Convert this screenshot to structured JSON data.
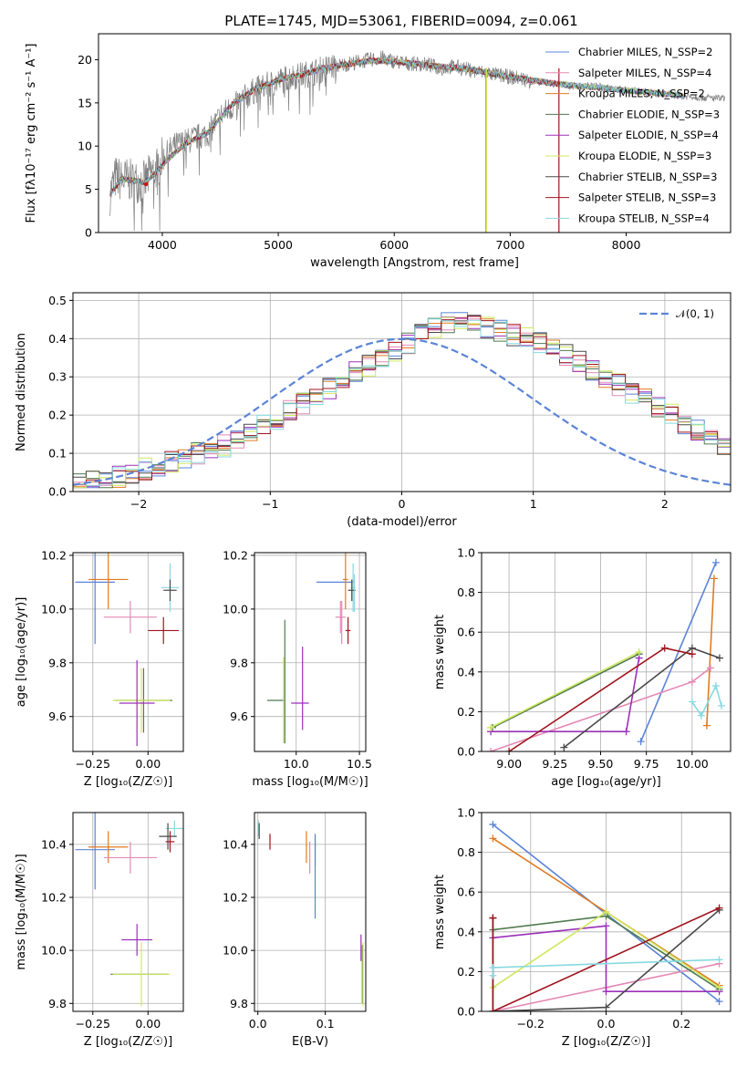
{
  "figure_title": "PLATE=1745, MJD=53061, FIBERID=0094, z=0.061",
  "models": [
    {
      "name": "Chabrier MILES, N_SSP=2",
      "color": "#5b84d8"
    },
    {
      "name": "Salpeter MILES, N_SSP=4",
      "color": "#e589b6"
    },
    {
      "name": "Kroupa MILES, N_SSP=2",
      "color": "#e07b22"
    },
    {
      "name": "Chabrier ELODIE, N_SSP=3",
      "color": "#4f7a4f"
    },
    {
      "name": "Salpeter ELODIE, N_SSP=4",
      "color": "#9b30b8"
    },
    {
      "name": "Kroupa ELODIE, N_SSP=3",
      "color": "#cfe85f"
    },
    {
      "name": "Chabrier STELIB, N_SSP=3",
      "color": "#4a4a4a"
    },
    {
      "name": "Salpeter STELIB, N_SSP=3",
      "color": "#a0141c"
    },
    {
      "name": "Kroupa STELIB, N_SSP=4",
      "color": "#86d9e0"
    }
  ],
  "chart_data": [
    {
      "id": "spectrum",
      "type": "line",
      "xlabel": "wavelength [Angstrom, rest frame]",
      "ylabel": "Flux [fλ10⁻¹⁷ erg cm⁻² s⁻¹ A⁻¹]",
      "xlim": [
        3450,
        8900
      ],
      "ylim": [
        0,
        23
      ],
      "xticks": [
        4000,
        5000,
        6000,
        7000,
        8000
      ],
      "yticks": [
        0,
        5,
        10,
        15,
        20
      ],
      "legend": "right",
      "data_color": "#808080",
      "data_x": [
        3550,
        3600,
        3650,
        3700,
        3750,
        3800,
        3850,
        3900,
        3950,
        4000,
        4100,
        4200,
        4300,
        4400,
        4500,
        4600,
        4700,
        4800,
        4900,
        5000,
        5100,
        5200,
        5300,
        5400,
        5500,
        5600,
        5700,
        5800,
        5900,
        6000,
        6100,
        6200,
        6300,
        6400,
        6500,
        6600,
        6700,
        6800,
        6900,
        7000,
        7100,
        7200,
        7300,
        7400,
        7500,
        7600,
        7700,
        7800,
        7900,
        8000,
        8100,
        8200,
        8300,
        8400,
        8500,
        8600,
        8700,
        8800
      ],
      "data_y": [
        4.5,
        6.5,
        6.0,
        6.2,
        5.8,
        6.0,
        5.8,
        6.8,
        7.5,
        8.5,
        10.0,
        10.5,
        11.0,
        11.5,
        13.5,
        14.5,
        15.5,
        16.5,
        17.0,
        17.5,
        18.0,
        18.2,
        18.5,
        19.0,
        19.3,
        19.5,
        19.8,
        20.0,
        20.2,
        19.8,
        19.6,
        19.5,
        19.4,
        19.0,
        19.2,
        19.0,
        18.6,
        18.5,
        18.2,
        18.0,
        17.8,
        17.5,
        17.3,
        17.2,
        17.0,
        16.9,
        17.0,
        16.8,
        16.6,
        16.5,
        16.4,
        16.2,
        16.0,
        16.0,
        15.8,
        15.7,
        15.6,
        15.5
      ],
      "model_x": [
        3550,
        3650,
        3750,
        3850,
        3950,
        4050,
        4200,
        4400,
        4600,
        4800,
        5000,
        5200,
        5400,
        5600,
        5800,
        6000,
        6200,
        6400,
        6600,
        6800,
        7000,
        7200,
        7400
      ],
      "model_y": [
        4.5,
        6.2,
        6.0,
        5.8,
        7.0,
        8.5,
        10.3,
        11.6,
        14.8,
        16.6,
        17.6,
        18.3,
        19.0,
        19.5,
        19.9,
        19.8,
        19.5,
        19.2,
        19.0,
        18.5,
        18.0,
        17.6,
        17.2
      ],
      "model_end_x": [
        8500,
        8500,
        8500,
        8500,
        8500,
        8500,
        8500,
        7420,
        8500
      ],
      "drop_lines": [
        {
          "x": 6790,
          "model": 2
        },
        {
          "x": 6795,
          "model": 5
        },
        {
          "x": 7420,
          "model": 7
        }
      ]
    },
    {
      "id": "residuals",
      "type": "area",
      "xlabel": "(data-model)/error",
      "ylabel": "Normed distribution",
      "xlim": [
        -2.5,
        2.5
      ],
      "ylim": [
        0,
        0.52
      ],
      "xticks": [
        -2,
        -1,
        0,
        1,
        2
      ],
      "yticks": [
        0.0,
        0.1,
        0.2,
        0.3,
        0.4,
        0.5
      ],
      "legend": "top-right",
      "legend_label": "𝒩(0, 1)",
      "gauss_color": "#5b84d8",
      "bin_width": 0.1,
      "bin_start": -2.5,
      "base_hist": [
        0.02,
        0.025,
        0.03,
        0.04,
        0.05,
        0.06,
        0.07,
        0.08,
        0.09,
        0.1,
        0.11,
        0.12,
        0.14,
        0.16,
        0.17,
        0.19,
        0.21,
        0.23,
        0.25,
        0.27,
        0.29,
        0.31,
        0.33,
        0.35,
        0.37,
        0.39,
        0.41,
        0.43,
        0.44,
        0.45,
        0.44,
        0.43,
        0.42,
        0.41,
        0.4,
        0.39,
        0.38,
        0.36,
        0.34,
        0.32,
        0.3,
        0.28,
        0.26,
        0.24,
        0.22,
        0.2,
        0.18,
        0.16,
        0.14,
        0.12
      ]
    },
    {
      "id": "age_vs_Z",
      "type": "scatter",
      "xlabel": "Z [log₁₀(Z/Z☉)]",
      "ylabel": "age  [log₁₀(age/yr)]",
      "xlim": [
        -0.34,
        0.16
      ],
      "ylim": [
        9.47,
        10.21
      ],
      "xticks": [
        -0.25,
        0.0
      ],
      "yticks": [
        9.6,
        9.8,
        10.0,
        10.2
      ],
      "points": [
        {
          "model": 0,
          "x": -0.24,
          "y": 10.1,
          "xerr": 0.09,
          "yerr": 0.23
        },
        {
          "model": 2,
          "x": -0.18,
          "y": 10.11,
          "xerr": 0.09,
          "yerr": 0.11
        },
        {
          "model": 1,
          "x": -0.08,
          "y": 9.97,
          "xerr": 0.12,
          "yerr": 0.06
        },
        {
          "model": 8,
          "x": 0.1,
          "y": 10.08,
          "xerr": 0.04,
          "yerr": 0.09
        },
        {
          "model": 6,
          "x": 0.1,
          "y": 10.07,
          "xerr": 0.03,
          "yerr": 0.04
        },
        {
          "model": 7,
          "x": 0.07,
          "y": 9.92,
          "xerr": 0.07,
          "yerr": 0.05
        },
        {
          "model": 3,
          "x": -0.02,
          "y": 9.66,
          "xerr": 0.13,
          "yerr": 0.12
        },
        {
          "model": 5,
          "x": -0.03,
          "y": 9.66,
          "xerr": 0.13,
          "yerr": 0.12
        },
        {
          "model": 4,
          "x": -0.05,
          "y": 9.65,
          "xerr": 0.08,
          "yerr": 0.16
        }
      ]
    },
    {
      "id": "age_vs_mass",
      "type": "scatter",
      "xlabel": "mass [log₁₀(M/M☉)]",
      "ylabel": "",
      "xlim": [
        9.67,
        10.55
      ],
      "ylim": [
        9.47,
        10.21
      ],
      "xticks": [
        10.0,
        10.5
      ],
      "yticks": [
        9.6,
        9.8,
        10.0,
        10.2
      ],
      "points": [
        {
          "model": 0,
          "x": 10.31,
          "y": 10.1,
          "xerr": 0.15,
          "yerr": 0.0
        },
        {
          "model": 2,
          "x": 10.39,
          "y": 10.11,
          "xerr": 0.02,
          "yerr": 0.11
        },
        {
          "model": 1,
          "x": 10.35,
          "y": 9.97,
          "xerr": 0.04,
          "yerr": 0.06
        },
        {
          "model": 8,
          "x": 10.45,
          "y": 10.08,
          "xerr": 0.02,
          "yerr": 0.09
        },
        {
          "model": 6,
          "x": 10.44,
          "y": 10.07,
          "xerr": 0.03,
          "yerr": 0.04
        },
        {
          "model": 7,
          "x": 10.41,
          "y": 9.92,
          "xerr": 0.02,
          "yerr": 0.05
        },
        {
          "model": 3,
          "x": 9.84,
          "y": 9.66,
          "xerr": 0.07,
          "yerr": 0.0
        },
        {
          "model": 5,
          "x": 9.9,
          "y": 9.66,
          "xerr": 0.0,
          "yerr": 0.16
        },
        {
          "model": 4,
          "x": 10.03,
          "y": 9.65,
          "xerr": 0.07,
          "yerr": 0.0
        }
      ],
      "vlines": [
        {
          "model": 3,
          "x": 9.91,
          "y0": 9.5,
          "y1": 9.96
        },
        {
          "model": 4,
          "x": 10.05,
          "y0": 9.55,
          "y1": 9.86
        },
        {
          "model": 1,
          "x": 10.36,
          "y0": 9.87,
          "y1": 10.03
        },
        {
          "model": 8,
          "x": 10.46,
          "y0": 9.99,
          "y1": 10.13
        }
      ]
    },
    {
      "id": "weight_vs_age",
      "type": "line",
      "xlabel": "age  [log₁₀(age/yr)]",
      "ylabel": "mass weight",
      "xlim": [
        8.85,
        10.21
      ],
      "ylim": [
        0,
        1
      ],
      "xticks": [
        9.0,
        9.25,
        9.5,
        9.75,
        10.0
      ],
      "yticks": [
        0.0,
        0.2,
        0.4,
        0.6,
        0.8,
        1.0
      ],
      "series": [
        {
          "model": 0,
          "x": [
            9.72,
            10.13
          ],
          "y": [
            0.05,
            0.95
          ]
        },
        {
          "model": 2,
          "x": [
            10.08,
            10.12
          ],
          "y": [
            0.13,
            0.87
          ]
        },
        {
          "model": 1,
          "x": [
            8.9,
            10.0,
            10.1
          ],
          "y": [
            0.0,
            0.35,
            0.42
          ]
        },
        {
          "model": 3,
          "x": [
            8.91,
            9.71
          ],
          "y": [
            0.12,
            0.49
          ]
        },
        {
          "model": 4,
          "x": [
            8.9,
            9.64,
            9.71
          ],
          "y": [
            0.1,
            0.1,
            0.47
          ]
        },
        {
          "model": 5,
          "x": [
            8.9,
            9.71
          ],
          "y": [
            0.12,
            0.5
          ]
        },
        {
          "model": 6,
          "x": [
            9.3,
            10.0,
            10.15
          ],
          "y": [
            0.02,
            0.52,
            0.47
          ]
        },
        {
          "model": 7,
          "x": [
            9.0,
            9.85,
            10.0
          ],
          "y": [
            0.0,
            0.52,
            0.49
          ]
        },
        {
          "model": 8,
          "x": [
            10.0,
            10.05,
            10.13,
            10.16
          ],
          "y": [
            0.25,
            0.18,
            0.33,
            0.23
          ]
        }
      ]
    },
    {
      "id": "mass_vs_Z",
      "type": "scatter",
      "xlabel": "Z [log₁₀(Z/Z☉)]",
      "ylabel": "mass [log₁₀(M/M☉)]",
      "xlim": [
        -0.34,
        0.16
      ],
      "ylim": [
        9.77,
        10.52
      ],
      "xticks": [
        -0.25,
        0.0
      ],
      "yticks": [
        9.8,
        10.0,
        10.2,
        10.4
      ],
      "points": [
        {
          "model": 0,
          "x": -0.24,
          "y": 10.38,
          "xerr": 0.09,
          "yerr": 0.15
        },
        {
          "model": 2,
          "x": -0.18,
          "y": 10.39,
          "xerr": 0.09,
          "yerr": 0.06
        },
        {
          "model": 1,
          "x": -0.08,
          "y": 10.35,
          "xerr": 0.12,
          "yerr": 0.06
        },
        {
          "model": 8,
          "x": 0.12,
          "y": 10.46,
          "xerr": 0.04,
          "yerr": 0.03
        },
        {
          "model": 6,
          "x": 0.09,
          "y": 10.43,
          "xerr": 0.04,
          "yerr": 0.05
        },
        {
          "model": 7,
          "x": 0.1,
          "y": 10.41,
          "xerr": 0.02,
          "yerr": 0.04
        },
        {
          "model": 4,
          "x": -0.05,
          "y": 10.04,
          "xerr": 0.07,
          "yerr": 0.06
        },
        {
          "model": 3,
          "x": -0.04,
          "y": 9.91,
          "xerr": 0.13,
          "yerr": 0.0
        },
        {
          "model": 5,
          "x": -0.03,
          "y": 9.91,
          "xerr": 0.13,
          "yerr": 0.12
        }
      ]
    },
    {
      "id": "mass_vs_ebv",
      "type": "scatter",
      "xlabel": "E(B-V)",
      "ylabel": "",
      "xlim": [
        -0.005,
        0.16
      ],
      "ylim": [
        9.77,
        10.52
      ],
      "xticks": [
        0.0,
        0.1
      ],
      "yticks": [
        9.8,
        10.0,
        10.2,
        10.4
      ],
      "points": [
        {
          "model": 0,
          "x": 0.085,
          "y": 10.38,
          "xerr": 0,
          "yerr": 0.06
        },
        {
          "model": 2,
          "x": 0.072,
          "y": 10.39,
          "xerr": 0,
          "yerr": 0.06
        },
        {
          "model": 1,
          "x": 0.077,
          "y": 10.35,
          "xerr": 0,
          "yerr": 0.06
        },
        {
          "model": 8,
          "x": 0.001,
          "y": 10.46,
          "xerr": 0,
          "yerr": 0.03
        },
        {
          "model": 6,
          "x": 0.002,
          "y": 10.45,
          "xerr": 0,
          "yerr": 0.03
        },
        {
          "model": 7,
          "x": 0.018,
          "y": 10.41,
          "xerr": 0,
          "yerr": 0.03
        },
        {
          "model": 4,
          "x": 0.153,
          "y": 10.01,
          "xerr": 0,
          "yerr": 0.05
        },
        {
          "model": 3,
          "x": 0.155,
          "y": 9.91,
          "xerr": 0,
          "yerr": 0.11
        },
        {
          "model": 5,
          "x": 0.156,
          "y": 9.91,
          "xerr": 0,
          "yerr": 0.12
        }
      ],
      "vlines": [
        {
          "model": 0,
          "x": 0.085,
          "y0": 10.12,
          "y1": 10.43
        }
      ]
    },
    {
      "id": "weight_vs_Z",
      "type": "line",
      "xlabel": "Z [log₁₀(Z/Z☉)]",
      "ylabel": "mass weight",
      "xlim": [
        -0.33,
        0.33
      ],
      "ylim": [
        0,
        1
      ],
      "xticks": [
        -0.2,
        0.0,
        0.2
      ],
      "yticks": [
        0.0,
        0.2,
        0.4,
        0.6,
        0.8,
        1.0
      ],
      "series": [
        {
          "model": 0,
          "x": [
            -0.3,
            0.0,
            0.3
          ],
          "y": [
            0.94,
            0.49,
            0.05
          ]
        },
        {
          "model": 2,
          "x": [
            -0.3,
            0.0,
            0.3
          ],
          "y": [
            0.87,
            0.5,
            0.13
          ]
        },
        {
          "model": 1,
          "x": [
            -0.3,
            -0.3,
            0.0,
            0.3
          ],
          "y": [
            0.0,
            0.0,
            0.12,
            0.24
          ]
        },
        {
          "model": 3,
          "x": [
            -0.3,
            0.0,
            0.3
          ],
          "y": [
            0.41,
            0.48,
            0.11
          ]
        },
        {
          "model": 4,
          "x": [
            -0.3,
            0.0,
            0.0,
            0.3
          ],
          "y": [
            0.37,
            0.43,
            0.1,
            0.1
          ]
        },
        {
          "model": 5,
          "x": [
            -0.3,
            0.0,
            0.3
          ],
          "y": [
            0.12,
            0.5,
            0.12
          ]
        },
        {
          "model": 6,
          "x": [
            -0.3,
            -0.3,
            0.0,
            0.3
          ],
          "y": [
            0.47,
            0.0,
            0.02,
            0.51
          ]
        },
        {
          "model": 7,
          "x": [
            -0.3,
            -0.3,
            0.3
          ],
          "y": [
            0.47,
            0.0,
            0.52
          ]
        },
        {
          "model": 8,
          "x": [
            -0.3,
            -0.3,
            0.3
          ],
          "y": [
            0.18,
            0.22,
            0.26
          ]
        }
      ]
    }
  ]
}
